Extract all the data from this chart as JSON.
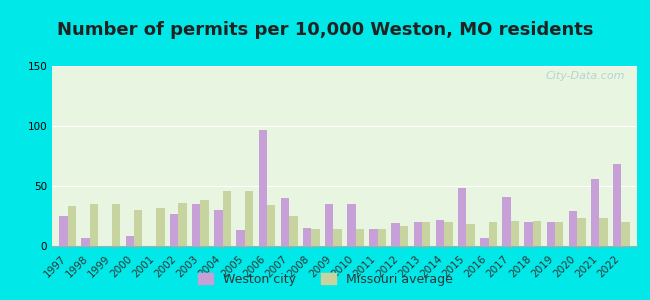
{
  "title": "Number of permits per 10,000 Weston, MO residents",
  "years": [
    1997,
    1998,
    1999,
    2000,
    2001,
    2002,
    2003,
    2004,
    2005,
    2006,
    2007,
    2008,
    2009,
    2010,
    2011,
    2012,
    2013,
    2014,
    2015,
    2016,
    2017,
    2018,
    2019,
    2020,
    2021,
    2022
  ],
  "weston": [
    25,
    7,
    0,
    8,
    0,
    27,
    35,
    30,
    13,
    97,
    40,
    15,
    35,
    35,
    14,
    19,
    20,
    22,
    48,
    7,
    41,
    20,
    20,
    29,
    56,
    68
  ],
  "missouri": [
    33,
    35,
    35,
    30,
    32,
    36,
    38,
    46,
    46,
    34,
    25,
    14,
    14,
    14,
    14,
    17,
    20,
    20,
    18,
    20,
    21,
    21,
    20,
    23,
    23,
    20
  ],
  "weston_color": "#c8a0d8",
  "missouri_color": "#c8d4a0",
  "plot_bg": "#e8f5e0",
  "outer_bg": "#00e8e8",
  "ylim": [
    0,
    150
  ],
  "yticks": [
    0,
    50,
    100,
    150
  ],
  "title_fontsize": 13,
  "legend_fontsize": 9,
  "tick_fontsize": 7.5
}
